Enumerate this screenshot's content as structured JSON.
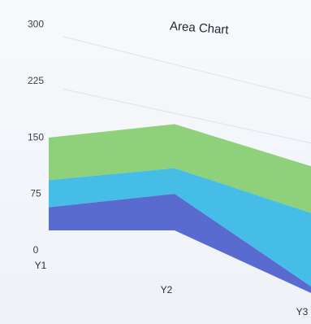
{
  "chart_data": {
    "type": "area",
    "stacked": true,
    "title": "Area Chart",
    "categories": [
      "Y1",
      "Y2",
      "Y3"
    ],
    "y_ticks": [
      0,
      75,
      150,
      225,
      300
    ],
    "ylim": [
      0,
      300
    ],
    "grid": true,
    "legend": "none",
    "series": [
      {
        "values": [
          30,
          50,
          10
        ],
        "color": "#5a6bd0"
      },
      {
        "values": [
          35,
          35,
          110
        ],
        "color": "#45bde6"
      },
      {
        "values": [
          55,
          60,
          70
        ],
        "color": "#8fd07a"
      }
    ]
  }
}
